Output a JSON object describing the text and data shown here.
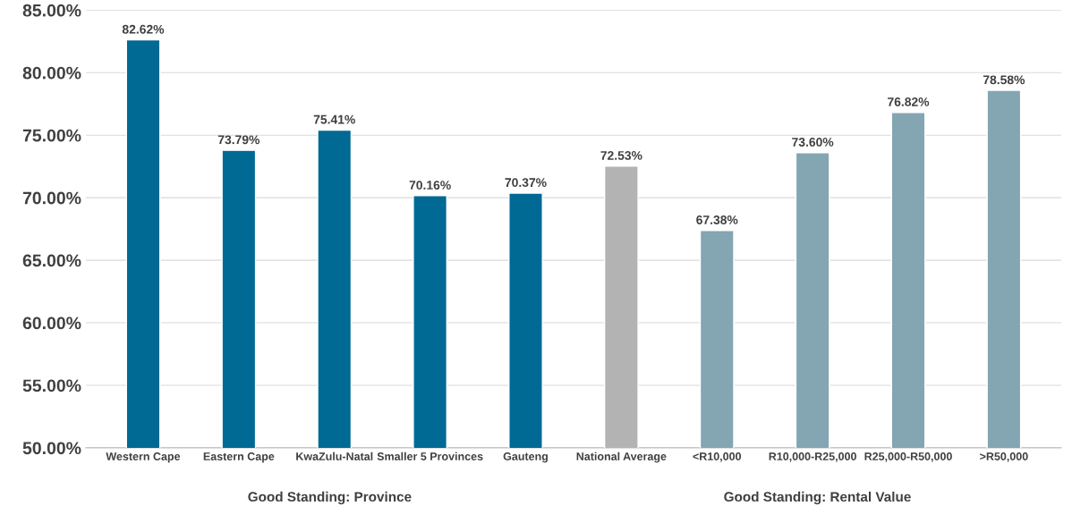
{
  "chart_data": {
    "type": "bar",
    "categories": [
      "Western Cape",
      "Eastern Cape",
      "KwaZulu-Natal",
      "Smaller 5 Provinces",
      "Gauteng",
      "National Average",
      "<R10,000",
      "R10,000-R25,000",
      "R25,000-R50,000",
      ">R50,000"
    ],
    "values": [
      82.62,
      73.79,
      75.41,
      70.16,
      70.37,
      72.53,
      67.38,
      73.6,
      76.82,
      78.58
    ],
    "colors": [
      "#006994",
      "#006994",
      "#006994",
      "#006994",
      "#006994",
      "#b3b3b3",
      "#84a5b2",
      "#84a5b2",
      "#84a5b2",
      "#84a5b2"
    ],
    "value_labels": [
      "82.62%",
      "73.79%",
      "75.41%",
      "70.16%",
      "70.37%",
      "72.53%",
      "67.38%",
      "73.60%",
      "76.82%",
      "78.58%"
    ],
    "ylim": [
      50,
      85
    ],
    "yticks": [
      {
        "value": 50,
        "label": "50.00%"
      },
      {
        "value": 55,
        "label": "55.00%"
      },
      {
        "value": 60,
        "label": "60.00%"
      },
      {
        "value": 65,
        "label": "65.00%"
      },
      {
        "value": 70,
        "label": "70.00%"
      },
      {
        "value": 75,
        "label": "75.00%"
      },
      {
        "value": 80,
        "label": "80.00%"
      },
      {
        "value": 85,
        "label": "85.00%"
      }
    ],
    "grid": "y",
    "annotations": [
      "Good Standing: Province",
      "Good Standing: Rental Value"
    ]
  }
}
